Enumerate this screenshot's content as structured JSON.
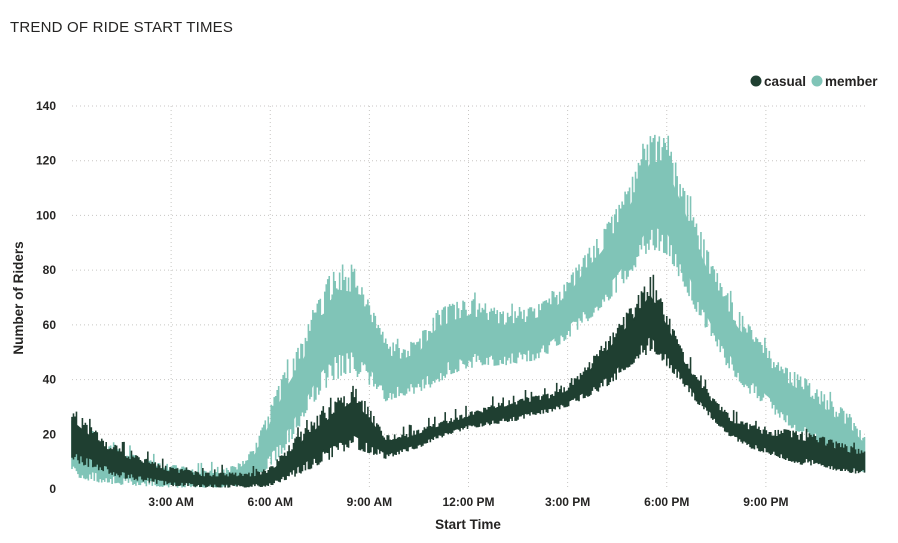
{
  "title": "TREND OF RIDE START TIMES",
  "colors": {
    "casual": "#1f3f31",
    "member": "#80c4b7",
    "grid": "#c8c6c4",
    "text": "#252423"
  },
  "legend": {
    "placement": "top-right",
    "items": [
      {
        "label": "casual",
        "color": "#1f3f31"
      },
      {
        "label": "member",
        "color": "#80c4b7"
      }
    ]
  },
  "chart_data": {
    "type": "area",
    "title": "TREND OF RIDE START TIMES",
    "xlabel": "Start Time",
    "ylabel": "Number of Riders",
    "x_unit": "hours since midnight",
    "xlim": [
      0,
      24
    ],
    "ylim": [
      0,
      140
    ],
    "x_ticks": [
      {
        "value": 3,
        "label": "3:00 AM"
      },
      {
        "value": 6,
        "label": "6:00 AM"
      },
      {
        "value": 9,
        "label": "9:00 AM"
      },
      {
        "value": 12,
        "label": "12:00 PM"
      },
      {
        "value": 15,
        "label": "3:00 PM"
      },
      {
        "value": 18,
        "label": "6:00 PM"
      },
      {
        "value": 21,
        "label": "9:00 PM"
      }
    ],
    "y_ticks": [
      {
        "value": 0,
        "label": "0"
      },
      {
        "value": 20,
        "label": "20"
      },
      {
        "value": 40,
        "label": "40"
      },
      {
        "value": 60,
        "label": "60"
      },
      {
        "value": 80,
        "label": "80"
      },
      {
        "value": 100,
        "label": "100"
      },
      {
        "value": 120,
        "label": "120"
      },
      {
        "value": 140,
        "label": "140"
      }
    ],
    "grid": true,
    "stacked": false,
    "noisy_band": true,
    "x": [
      0,
      0.5,
      1,
      1.5,
      2,
      2.5,
      3,
      3.5,
      4,
      4.5,
      5,
      5.5,
      6,
      6.5,
      7,
      7.5,
      8,
      8.5,
      9,
      9.5,
      10,
      10.5,
      11,
      11.5,
      12,
      12.5,
      13,
      13.5,
      14,
      14.5,
      15,
      15.5,
      16,
      16.5,
      17,
      17.5,
      18,
      18.5,
      19,
      19.5,
      20,
      20.5,
      21,
      21.5,
      22,
      22.5,
      23,
      23.5,
      24
    ],
    "series": [
      {
        "name": "member",
        "low": [
          5,
          3,
          2,
          1.5,
          1,
          1,
          0.5,
          0.5,
          0.5,
          0.5,
          1,
          3,
          8,
          15,
          25,
          35,
          40,
          42,
          38,
          32,
          34,
          35,
          38,
          42,
          44,
          45,
          45,
          46,
          47,
          50,
          55,
          60,
          66,
          72,
          80,
          88,
          85,
          75,
          62,
          50,
          42,
          35,
          30,
          25,
          20,
          16,
          12,
          8,
          6
        ],
        "high": [
          25,
          20,
          17,
          14,
          12,
          10,
          9,
          8,
          7,
          7,
          9,
          15,
          30,
          45,
          55,
          70,
          84,
          82,
          68,
          55,
          52,
          55,
          65,
          68,
          70,
          68,
          65,
          65,
          67,
          70,
          76,
          86,
          93,
          103,
          115,
          130,
          128,
          112,
          95,
          80,
          68,
          60,
          52,
          45,
          42,
          38,
          32,
          28,
          20
        ]
      },
      {
        "name": "casual",
        "low": [
          10,
          8,
          6,
          4,
          3,
          2,
          1,
          1,
          0.5,
          0.5,
          0.5,
          0.5,
          1,
          3,
          6,
          9,
          12,
          15,
          13,
          11,
          13,
          15,
          18,
          20,
          22,
          23,
          24,
          25,
          27,
          28,
          30,
          33,
          36,
          40,
          46,
          50,
          45,
          38,
          30,
          24,
          18,
          15,
          13,
          11,
          9,
          8,
          7,
          6,
          5
        ],
        "high": [
          30,
          24,
          18,
          15,
          12,
          10,
          8,
          7,
          6,
          6,
          6,
          6,
          8,
          15,
          22,
          28,
          33,
          38,
          30,
          20,
          20,
          22,
          24,
          26,
          28,
          30,
          32,
          33,
          34,
          35,
          38,
          44,
          52,
          60,
          68,
          78,
          65,
          50,
          40,
          32,
          26,
          24,
          22,
          22,
          21,
          20,
          18,
          16,
          14
        ]
      }
    ]
  }
}
